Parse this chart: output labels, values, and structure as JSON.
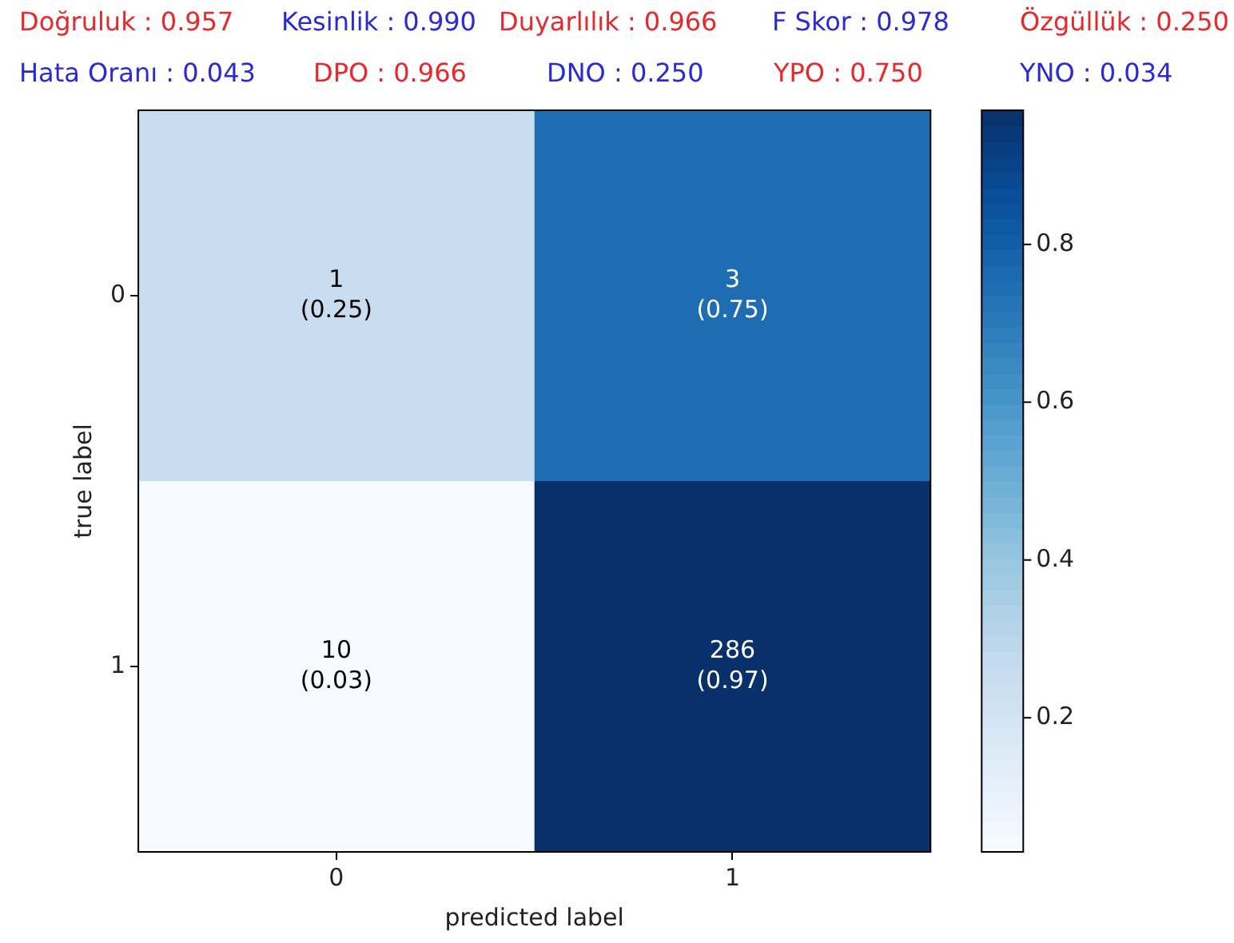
{
  "chart_data": {
    "type": "heatmap",
    "categories": [
      "0",
      "1"
    ],
    "y_categories": [
      "0",
      "1"
    ],
    "cells": [
      [
        0.25,
        0.75
      ],
      [
        0.03,
        0.97
      ]
    ],
    "cell_labels": [
      [
        "1\n(0.25)",
        "3\n(0.75)"
      ],
      [
        "10\n(0.03)",
        "286\n(0.97)"
      ]
    ],
    "clim": [
      0.03,
      0.97
    ],
    "cticks": [
      0.2,
      0.4,
      0.6,
      0.8
    ],
    "xlabel": "predicted label",
    "ylabel": "true label",
    "annotations": [
      "Doğruluk : 0.957",
      "Kesinlik : 0.990",
      "Duyarlılık : 0.966",
      "F Skor : 0.978",
      "Özgüllük : 0.250",
      "Hata Oranı : 0.043",
      "DPO : 0.966",
      "DNO : 0.250",
      "YPO : 0.750",
      "YNO : 0.034"
    ]
  }
}
